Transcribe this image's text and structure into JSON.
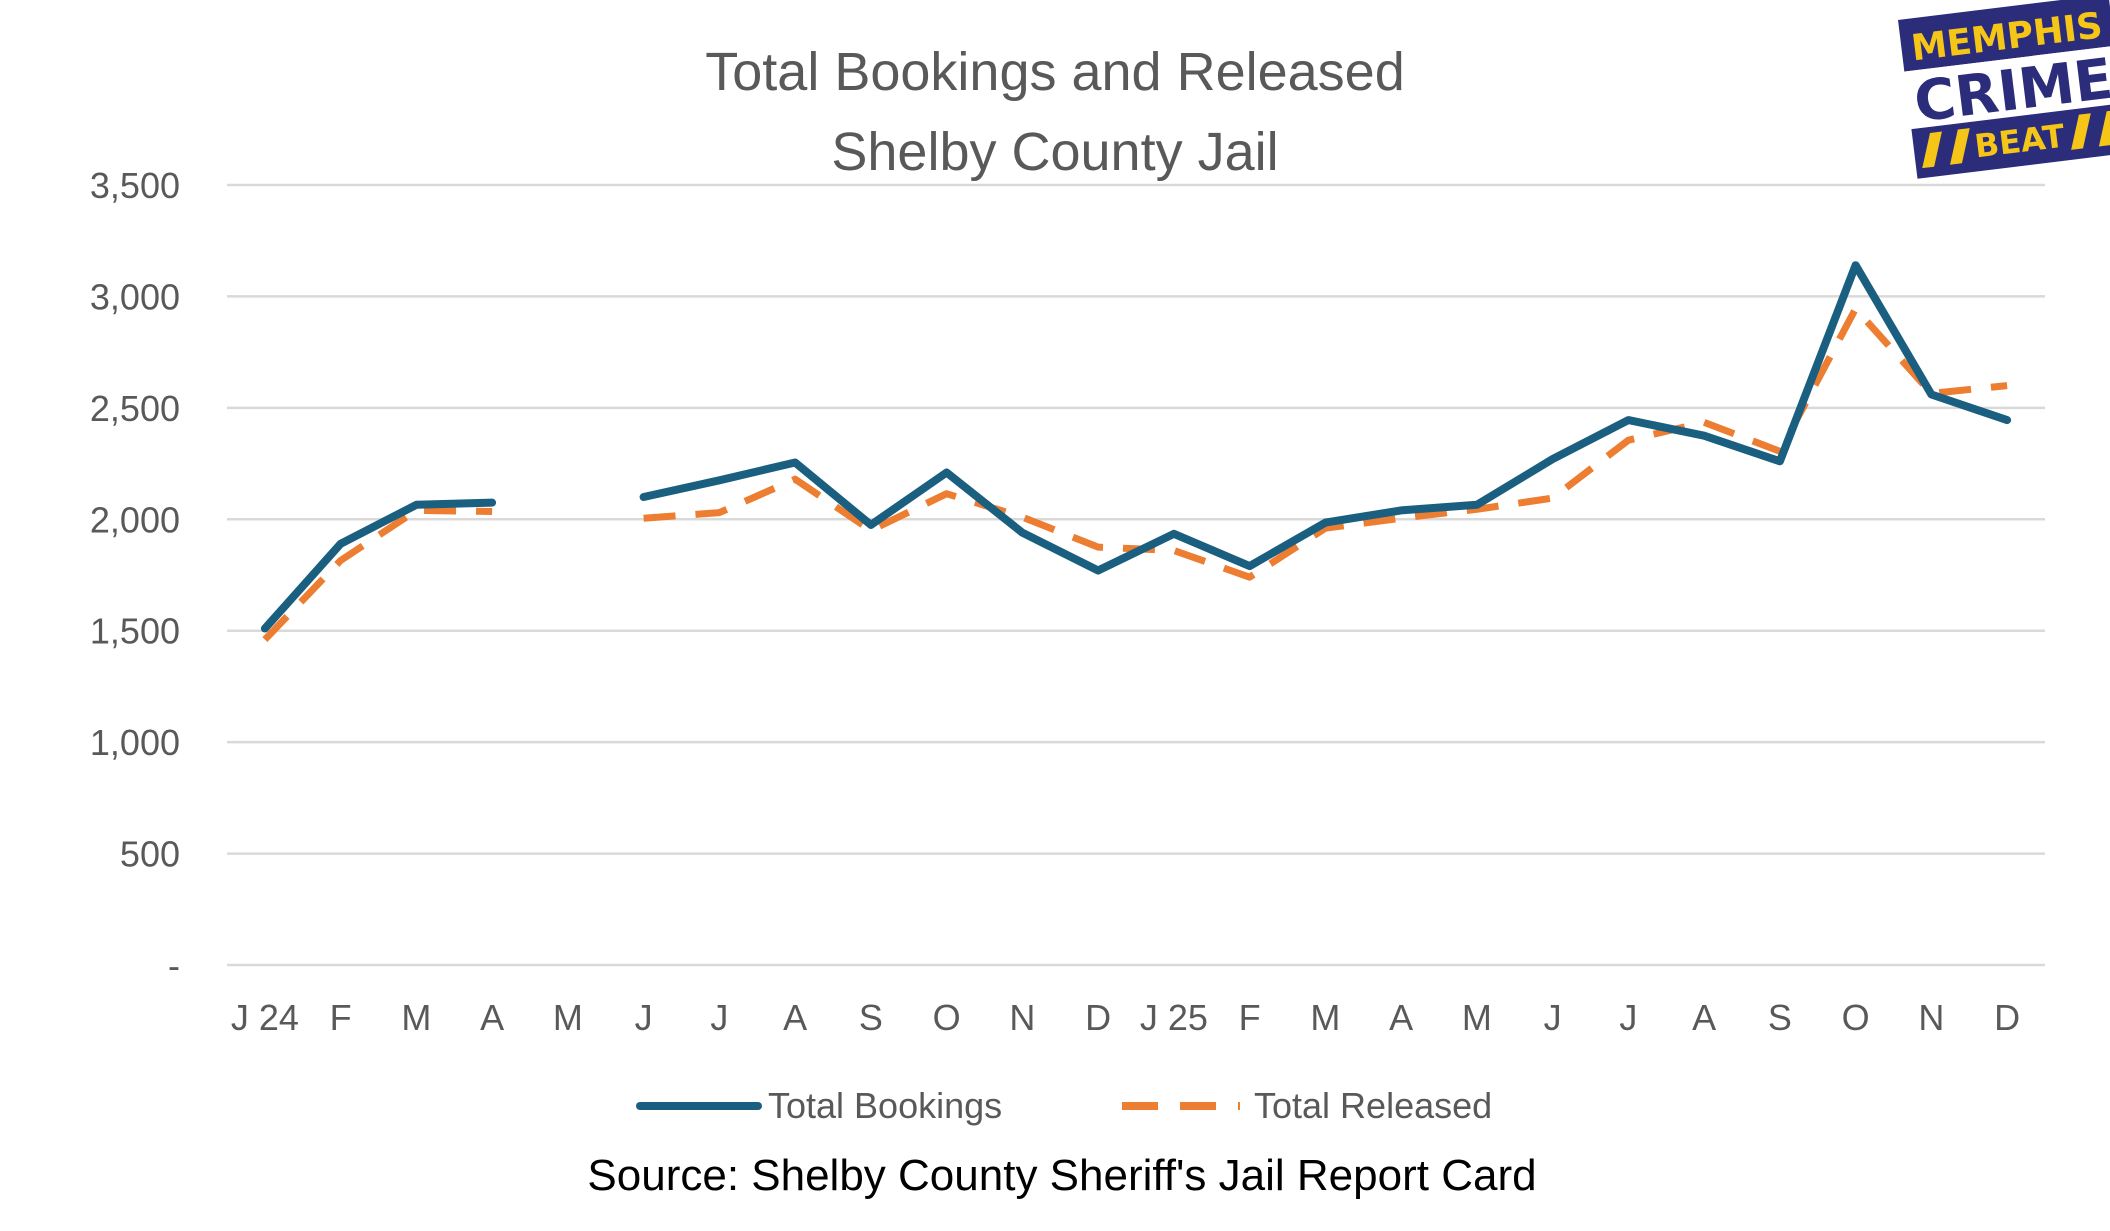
{
  "logo": {
    "line1": "MEMPHIS",
    "line2": "CRIME",
    "line3": "BEAT"
  },
  "colors": {
    "bookings": "#1b5f80",
    "released": "#ed7d31",
    "grid": "#d9d9d9",
    "text": "#595959",
    "logo_bg": "#2b2d7a",
    "logo_accent": "#f5c518"
  },
  "chart_data": {
    "type": "line",
    "title": [
      "Total Bookings and Released",
      "Shelby County Jail"
    ],
    "xlabel": "",
    "ylabel": "",
    "ylim": [
      0,
      3500
    ],
    "yticks": [
      0,
      500,
      1000,
      1500,
      2000,
      2500,
      3000,
      3500
    ],
    "ytick_labels": [
      "-",
      "500",
      "1,000",
      "1,500",
      "2,000",
      "2,500",
      "3,000",
      "3,500"
    ],
    "categories": [
      "J 24",
      "F",
      "M",
      "A",
      "M",
      "J",
      "J",
      "A",
      "S",
      "O",
      "N",
      "D",
      "J 25",
      "F",
      "M",
      "A",
      "M",
      "J",
      "J",
      "A",
      "S",
      "O",
      "N",
      "D"
    ],
    "series": [
      {
        "name": "Total Bookings",
        "style": "solid",
        "values": [
          1510,
          1890,
          2065,
          2075,
          null,
          2100,
          2175,
          2255,
          1975,
          2210,
          1940,
          1770,
          1935,
          1790,
          1985,
          2040,
          2065,
          2270,
          2445,
          2375,
          2260,
          3140,
          2560,
          2445
        ]
      },
      {
        "name": "Total Released",
        "style": "dashed",
        "values": [
          1460,
          1815,
          2040,
          2035,
          null,
          2005,
          2030,
          2180,
          1950,
          2115,
          2010,
          1875,
          1860,
          1740,
          1960,
          2005,
          2045,
          2095,
          2355,
          2435,
          2305,
          2945,
          2565,
          2600
        ]
      }
    ],
    "legend_position": "bottom",
    "source": "Source: Shelby County Sheriff's Jail Report Card"
  }
}
